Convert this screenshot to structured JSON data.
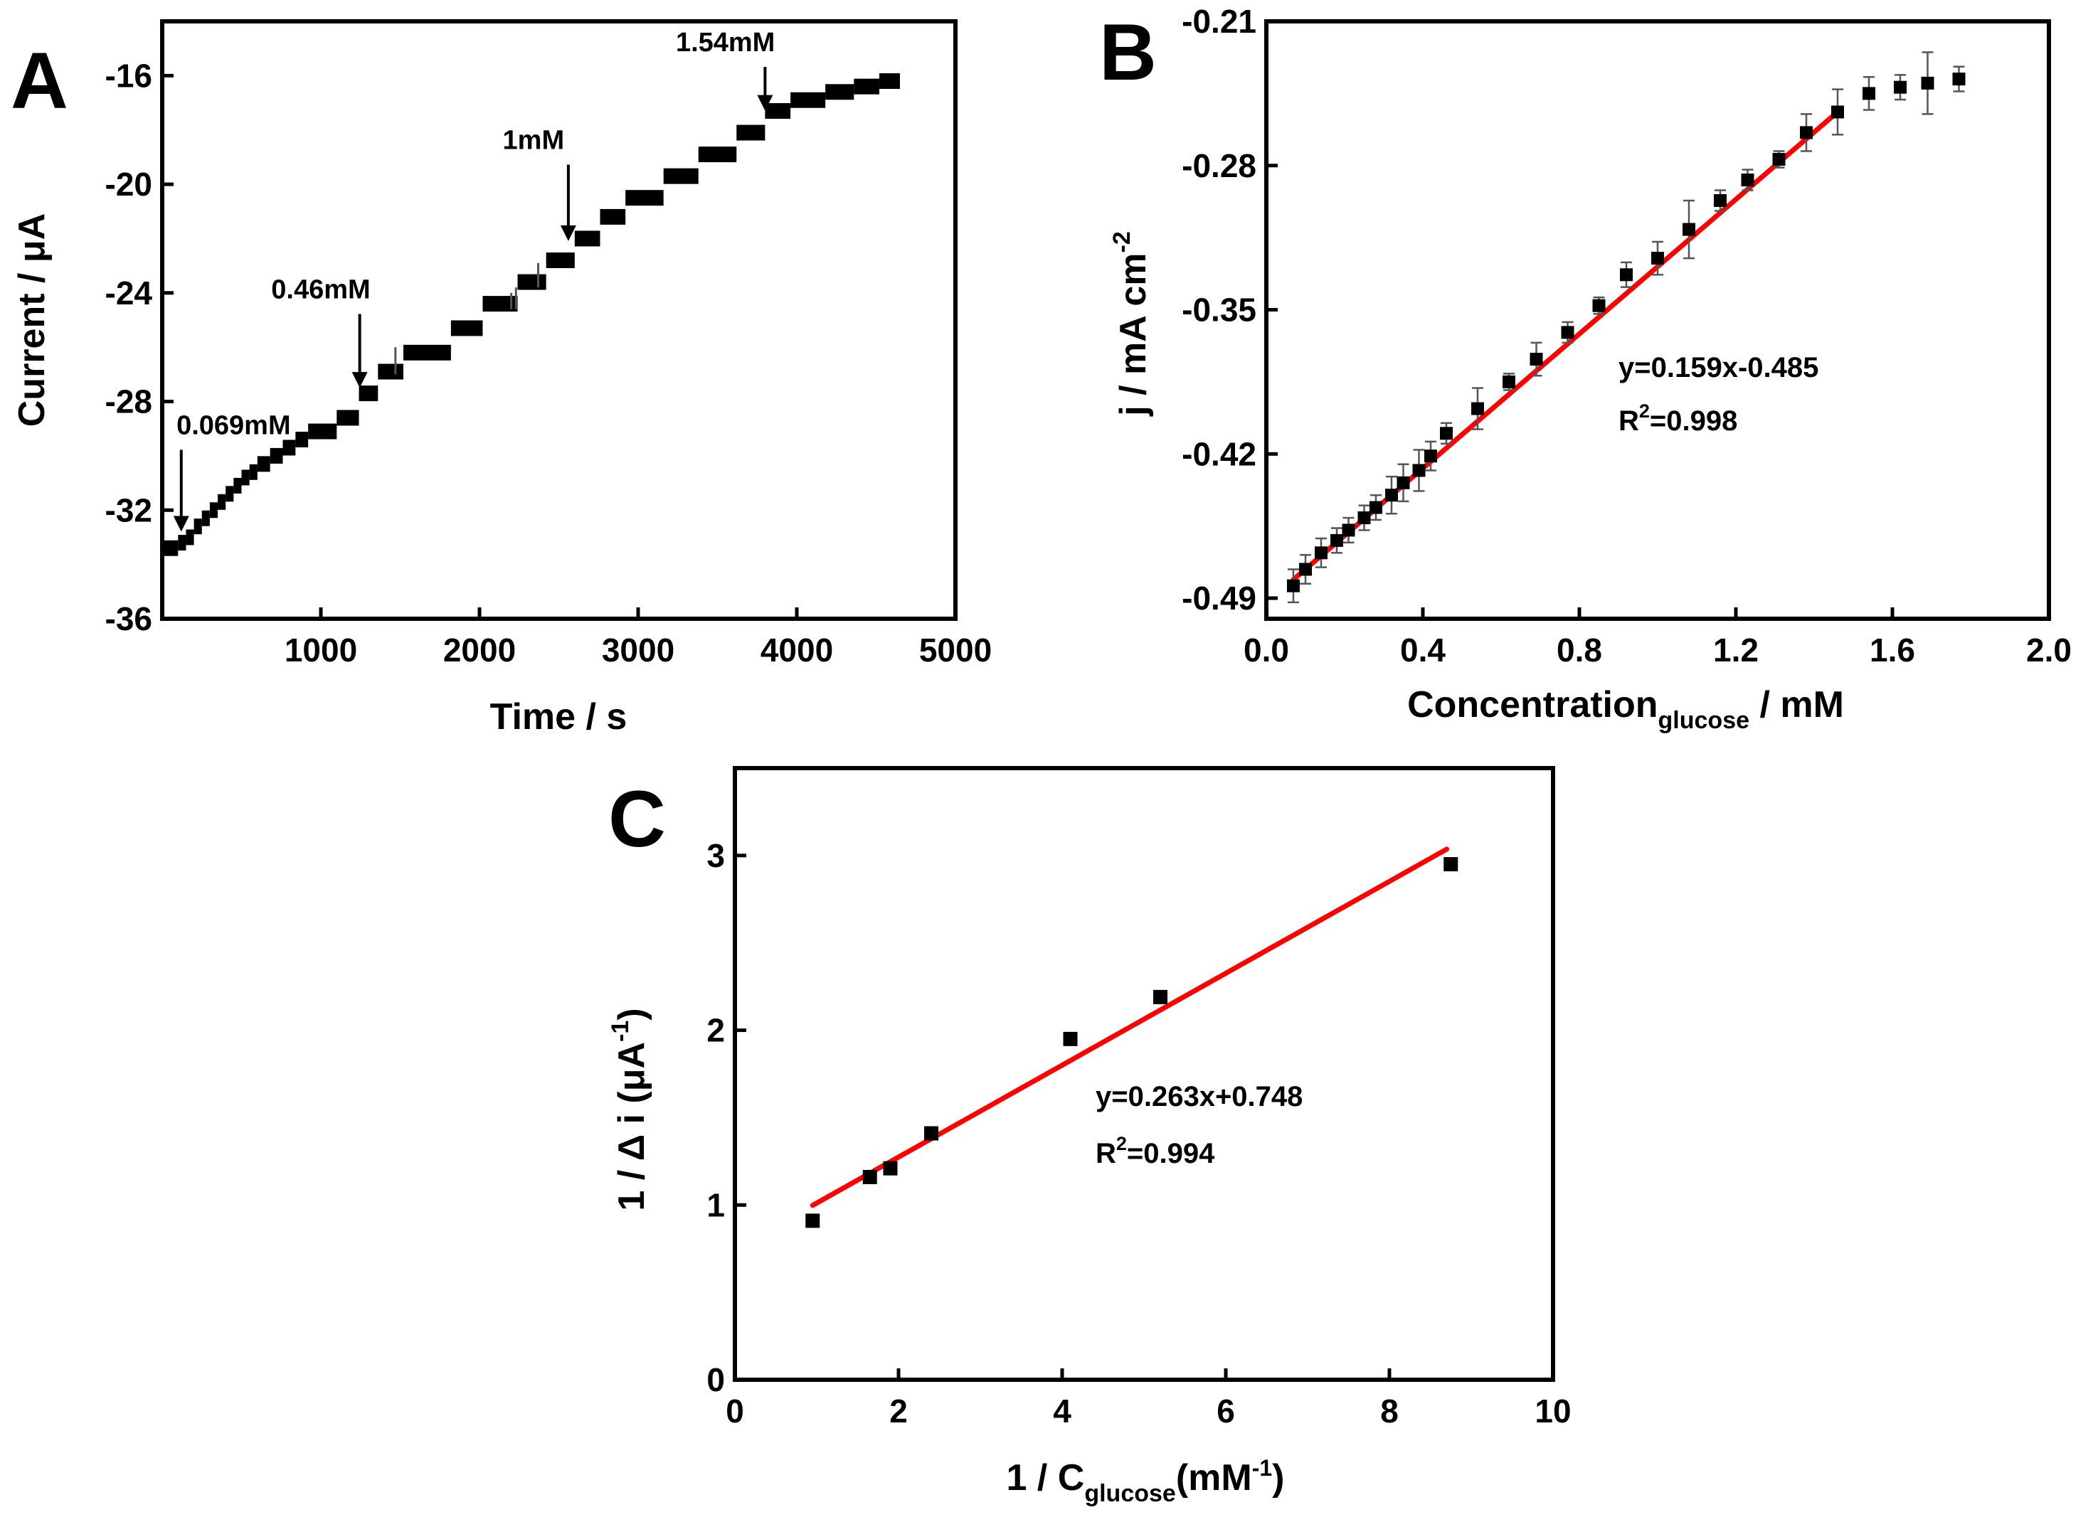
{
  "colors": {
    "fit_line": "#ff0000",
    "marker": "#000000",
    "axis": "#000000",
    "error_bar": "#555555"
  },
  "chart_data": [
    {
      "panel": "A",
      "type": "line",
      "title": "",
      "xlabel": "Time / s",
      "ylabel": "Current / μA",
      "xlim": [
        0,
        5000
      ],
      "ylim": [
        -36,
        -14
      ],
      "xticks": [
        1000,
        2000,
        3000,
        4000,
        5000
      ],
      "yticks": [
        -36,
        -32,
        -28,
        -24,
        -20,
        -16
      ],
      "xtick_labels": [
        "1000",
        "2000",
        "3000",
        "4000",
        "5000"
      ],
      "ytick_labels": [
        "-36",
        "-32",
        "-28",
        "-24",
        "-20",
        "-16"
      ],
      "grid": false,
      "steps": [
        {
          "t0": 0,
          "t1": 100,
          "y": -33.4
        },
        {
          "t0": 100,
          "t1": 150,
          "y": -33.2
        },
        {
          "t0": 150,
          "t1": 200,
          "y": -33.0
        },
        {
          "t0": 200,
          "t1": 250,
          "y": -32.6
        },
        {
          "t0": 250,
          "t1": 300,
          "y": -32.3
        },
        {
          "t0": 300,
          "t1": 350,
          "y": -32.0
        },
        {
          "t0": 350,
          "t1": 400,
          "y": -31.7
        },
        {
          "t0": 400,
          "t1": 450,
          "y": -31.4
        },
        {
          "t0": 450,
          "t1": 500,
          "y": -31.1
        },
        {
          "t0": 500,
          "t1": 550,
          "y": -30.8
        },
        {
          "t0": 550,
          "t1": 600,
          "y": -30.6
        },
        {
          "t0": 600,
          "t1": 680,
          "y": -30.3
        },
        {
          "t0": 680,
          "t1": 760,
          "y": -30.0
        },
        {
          "t0": 760,
          "t1": 840,
          "y": -29.7
        },
        {
          "t0": 840,
          "t1": 920,
          "y": -29.4
        },
        {
          "t0": 920,
          "t1": 1100,
          "y": -29.1
        },
        {
          "t0": 1100,
          "t1": 1240,
          "y": -28.6
        },
        {
          "t0": 1240,
          "t1": 1360,
          "y": -27.7
        },
        {
          "t0": 1360,
          "t1": 1520,
          "y": -26.9
        },
        {
          "t0": 1520,
          "t1": 1820,
          "y": -26.2
        },
        {
          "t0": 1820,
          "t1": 2020,
          "y": -25.3
        },
        {
          "t0": 2020,
          "t1": 2240,
          "y": -24.4
        },
        {
          "t0": 2240,
          "t1": 2420,
          "y": -23.6
        },
        {
          "t0": 2420,
          "t1": 2600,
          "y": -22.8
        },
        {
          "t0": 2600,
          "t1": 2760,
          "y": -22.0
        },
        {
          "t0": 2760,
          "t1": 2920,
          "y": -21.2
        },
        {
          "t0": 2920,
          "t1": 3160,
          "y": -20.5
        },
        {
          "t0": 3160,
          "t1": 3380,
          "y": -19.7
        },
        {
          "t0": 3380,
          "t1": 3620,
          "y": -18.9
        },
        {
          "t0": 3620,
          "t1": 3800,
          "y": -18.1
        },
        {
          "t0": 3800,
          "t1": 3960,
          "y": -17.3
        },
        {
          "t0": 3960,
          "t1": 4180,
          "y": -16.9
        },
        {
          "t0": 4180,
          "t1": 4360,
          "y": -16.6
        },
        {
          "t0": 4360,
          "t1": 4520,
          "y": -16.4
        },
        {
          "t0": 4520,
          "t1": 4650,
          "y": -16.2
        }
      ],
      "spikes": [
        {
          "t": 2200,
          "y_low": -24.6,
          "y_high": -24.0
        },
        {
          "t": 2230,
          "y_low": -24.6,
          "y_high": -23.8
        },
        {
          "t": 2370,
          "y_low": -23.8,
          "y_high": -22.9
        },
        {
          "t": 1470,
          "y_low": -27.0,
          "y_high": -26.0
        }
      ],
      "annotations": [
        {
          "text": "0.069mM",
          "x": 120,
          "y": -33.0,
          "label_x": 450,
          "label_y": -29.2
        },
        {
          "text": "0.46mM",
          "x": 1245,
          "y": -27.7,
          "label_x": 1000,
          "label_y": -24.2
        },
        {
          "text": "1mM",
          "x": 2560,
          "y": -22.3,
          "label_x": 2340,
          "label_y": -18.7
        },
        {
          "text": "1.54mM",
          "x": 3800,
          "y": -17.5,
          "label_x": 3550,
          "label_y": -15.1
        }
      ]
    },
    {
      "panel": "B",
      "type": "scatter",
      "title": "",
      "xlabel": "Concentration",
      "xlabel_sub": "glucose",
      "xlabel_unit": " / mM",
      "ylabel": "j / mA cm",
      "ylabel_sup": "-2",
      "xlim": [
        0.0,
        2.0
      ],
      "ylim": [
        -0.5,
        -0.21
      ],
      "xticks": [
        0.0,
        0.4,
        0.8,
        1.2,
        1.6,
        2.0
      ],
      "yticks": [
        -0.49,
        -0.42,
        -0.35,
        -0.28,
        -0.21
      ],
      "xtick_labels": [
        "0.0",
        "0.4",
        "0.8",
        "1.2",
        "1.6",
        "2.0"
      ],
      "ytick_labels": [
        "-0.49",
        "-0.42",
        "-0.35",
        "-0.28",
        "-0.21"
      ],
      "grid": false,
      "points": [
        {
          "x": 0.069,
          "y": -0.484,
          "err": 0.008
        },
        {
          "x": 0.1,
          "y": -0.476,
          "err": 0.007
        },
        {
          "x": 0.14,
          "y": -0.468,
          "err": 0.007
        },
        {
          "x": 0.18,
          "y": -0.462,
          "err": 0.006
        },
        {
          "x": 0.21,
          "y": -0.457,
          "err": 0.006
        },
        {
          "x": 0.25,
          "y": -0.451,
          "err": 0.006
        },
        {
          "x": 0.28,
          "y": -0.446,
          "err": 0.006
        },
        {
          "x": 0.32,
          "y": -0.44,
          "err": 0.009
        },
        {
          "x": 0.35,
          "y": -0.434,
          "err": 0.009
        },
        {
          "x": 0.39,
          "y": -0.428,
          "err": 0.01
        },
        {
          "x": 0.42,
          "y": -0.421,
          "err": 0.007
        },
        {
          "x": 0.46,
          "y": -0.41,
          "err": 0.005
        },
        {
          "x": 0.54,
          "y": -0.398,
          "err": 0.01
        },
        {
          "x": 0.62,
          "y": -0.385,
          "err": 0.004
        },
        {
          "x": 0.69,
          "y": -0.374,
          "err": 0.008
        },
        {
          "x": 0.77,
          "y": -0.361,
          "err": 0.005
        },
        {
          "x": 0.85,
          "y": -0.348,
          "err": 0.004
        },
        {
          "x": 0.92,
          "y": -0.333,
          "err": 0.006
        },
        {
          "x": 1.0,
          "y": -0.325,
          "err": 0.008
        },
        {
          "x": 1.08,
          "y": -0.311,
          "err": 0.014
        },
        {
          "x": 1.16,
          "y": -0.297,
          "err": 0.005
        },
        {
          "x": 1.23,
          "y": -0.287,
          "err": 0.005
        },
        {
          "x": 1.31,
          "y": -0.277,
          "err": 0.004
        },
        {
          "x": 1.38,
          "y": -0.264,
          "err": 0.009
        },
        {
          "x": 1.46,
          "y": -0.254,
          "err": 0.011
        },
        {
          "x": 1.54,
          "y": -0.245,
          "err": 0.008
        },
        {
          "x": 1.62,
          "y": -0.242,
          "err": 0.006
        },
        {
          "x": 1.69,
          "y": -0.24,
          "err": 0.015
        },
        {
          "x": 1.77,
          "y": -0.238,
          "err": 0.006
        }
      ],
      "fit": {
        "x_start": 0.069,
        "x_end": 1.46,
        "y_start": -0.481,
        "y_end": -0.254
      },
      "equation": "y=0.159x-0.485",
      "r2_label": "R",
      "r2_sup": "2",
      "r2_value": "=0.998"
    },
    {
      "panel": "C",
      "type": "scatter",
      "title": "",
      "xlabel": "1 / C",
      "xlabel_sub": "glucose",
      "xlabel_unit_pre": "(mM",
      "xlabel_sup": "-1",
      "xlabel_unit_post": ")",
      "ylabel": "1 / Δ i (μA",
      "ylabel_sup": "-1",
      "ylabel_post": ")",
      "xlim": [
        0,
        10
      ],
      "ylim": [
        0,
        3.5
      ],
      "xticks": [
        0,
        2,
        4,
        6,
        8,
        10
      ],
      "yticks": [
        0,
        1,
        2,
        3
      ],
      "xtick_labels": [
        "0",
        "2",
        "4",
        "6",
        "8",
        "10"
      ],
      "ytick_labels": [
        "0",
        "1",
        "2",
        "3"
      ],
      "grid": false,
      "points": [
        {
          "x": 0.95,
          "y": 0.91
        },
        {
          "x": 1.65,
          "y": 1.16
        },
        {
          "x": 1.9,
          "y": 1.21
        },
        {
          "x": 2.4,
          "y": 1.41
        },
        {
          "x": 4.1,
          "y": 1.95
        },
        {
          "x": 5.2,
          "y": 2.19
        },
        {
          "x": 8.75,
          "y": 2.95
        }
      ],
      "fit": {
        "x_start": 0.95,
        "x_end": 8.7,
        "y_start": 0.998,
        "y_end": 3.036
      },
      "equation": "y=0.263x+0.748",
      "r2_label": "R",
      "r2_sup": "2",
      "r2_value": "=0.994"
    }
  ],
  "panel_labels": [
    "A",
    "B",
    "C"
  ]
}
